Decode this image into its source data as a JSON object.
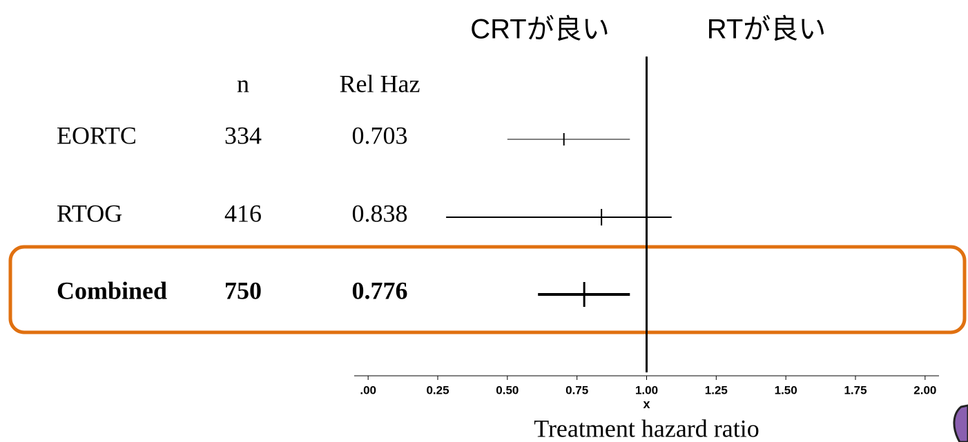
{
  "chart_data": {
    "type": "forest",
    "headings": [
      "CRTが良い",
      "RTが良い"
    ],
    "columns": [
      "n",
      "Rel Haz"
    ],
    "rows": [
      {
        "name": "EORTC",
        "n": 334,
        "rel_haz": 0.703,
        "ci": [
          0.5,
          0.94
        ],
        "line_width": 1
      },
      {
        "name": "RTOG",
        "n": 416,
        "rel_haz": 0.838,
        "ci": [
          0.28,
          1.09
        ],
        "line_width": 2
      },
      {
        "name": "Combined",
        "n": 750,
        "rel_haz": 0.776,
        "ci": [
          0.61,
          0.94
        ],
        "line_width": 4
      }
    ],
    "highlight_row": 2,
    "highlight_color": "#e07010",
    "reference": 1,
    "xlim": [
      -0.05,
      2.05
    ],
    "xticks": [
      {
        "value": 0,
        "label": ".00"
      },
      0.25,
      {
        "value": 0.5,
        "label": "0.50"
      },
      0.75,
      {
        "value": 1,
        "label": "1.00"
      },
      1.25,
      {
        "value": 1.5,
        "label": "1.50"
      },
      1.75,
      {
        "value": 2,
        "label": "2.00"
      }
    ],
    "x_marker": "x",
    "x_label": "Treatment hazard ratio"
  }
}
